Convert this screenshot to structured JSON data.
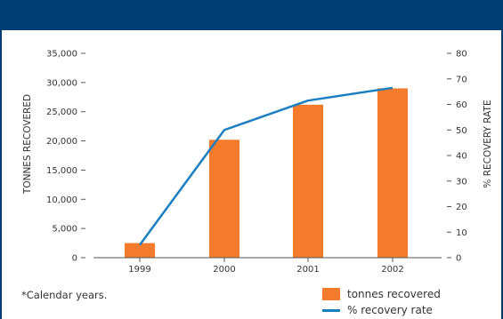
{
  "chart_data": {
    "type": "bar",
    "categories": [
      "1999",
      "2000",
      "2001",
      "2002"
    ],
    "series": [
      {
        "name": "tonnes recovered",
        "type": "bar",
        "axis": "left",
        "color": "#f47b2c",
        "values": [
          2500,
          20200,
          26200,
          29000
        ]
      },
      {
        "name": "% recovery rate",
        "type": "line",
        "axis": "right",
        "color": "#1a7fc1",
        "values": [
          5,
          50,
          61.5,
          66.5
        ]
      }
    ],
    "ylabel": "TONNES RECOVERED",
    "y2label": "% RECOVERY RATE",
    "ylim": [
      0,
      35000
    ],
    "y2lim": [
      0,
      80
    ],
    "yticks": [
      "0",
      "5,000",
      "10,000",
      "15,000",
      "20,000",
      "25,000",
      "30,000",
      "35,000"
    ],
    "y2ticks": [
      "0",
      "10",
      "20",
      "30",
      "40",
      "50",
      "60",
      "70",
      "80"
    ],
    "grid": false,
    "legend": "bottom-right"
  },
  "footnote": "*Calendar years.",
  "colors": {
    "header": "#003d73",
    "bar": "#f47b2c",
    "line": "#1a7fc1"
  }
}
